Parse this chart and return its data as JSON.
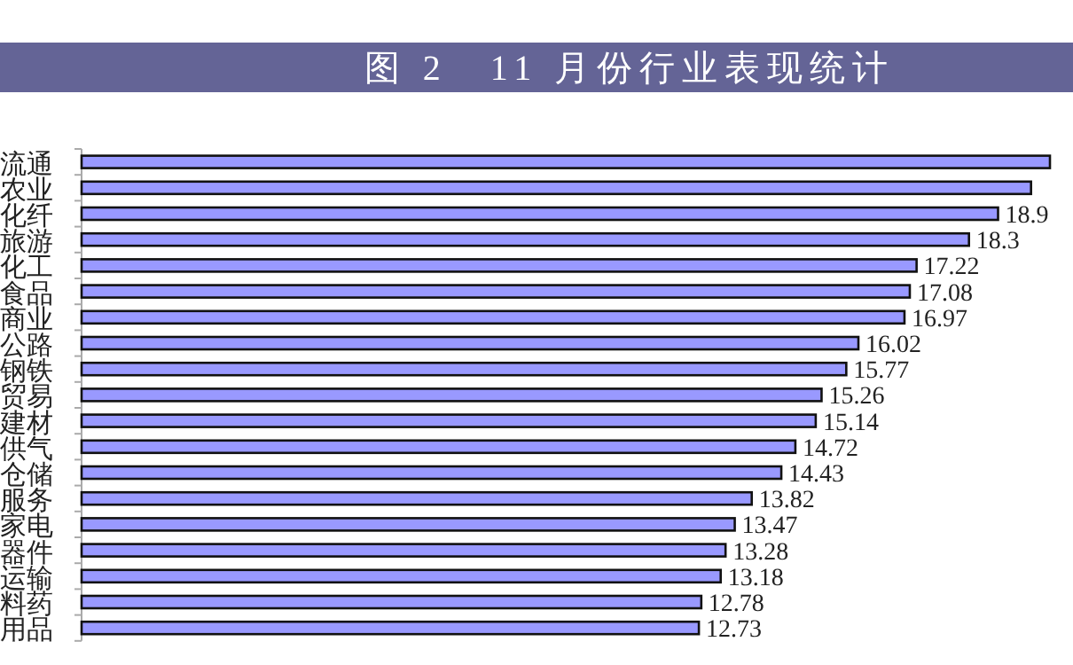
{
  "chart_data": {
    "type": "bar",
    "orientation": "horizontal",
    "title": "图 2　11 月份行业表现统计",
    "categories": [
      "流通",
      "农业",
      "化纤",
      "旅游",
      "化工",
      "食品",
      "商业",
      "公路",
      "钢铁",
      "贸易",
      "建材",
      "供气",
      "仓储",
      "服务",
      "家电",
      "器件",
      "运输",
      "料药",
      "用品"
    ],
    "values": [
      19.97,
      19.58,
      18.9,
      18.3,
      17.22,
      17.08,
      16.97,
      16.02,
      15.77,
      15.26,
      15.14,
      14.72,
      14.43,
      13.82,
      13.47,
      13.28,
      13.18,
      12.78,
      12.73
    ],
    "value_labels": [
      null,
      null,
      "18.9",
      "18.3",
      "17.22",
      "17.08",
      "16.97",
      "16.02",
      "15.77",
      "15.26",
      "15.14",
      "14.72",
      "14.43",
      "13.82",
      "13.47",
      "13.28",
      "13.18",
      "12.78",
      "12.73"
    ],
    "color": "#9999ff"
  }
}
